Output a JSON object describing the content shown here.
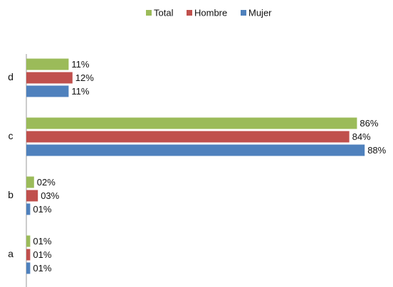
{
  "chart_data": {
    "type": "hbar",
    "categories": [
      "a",
      "b",
      "c",
      "d"
    ],
    "series": [
      {
        "name": "Total",
        "color": "#9bbb59",
        "values": [
          1,
          2,
          86,
          11
        ],
        "value_labels": [
          "01%",
          "02%",
          "86%",
          "11%"
        ]
      },
      {
        "name": "Hombre",
        "color": "#c0504d",
        "values": [
          1,
          3,
          84,
          12
        ],
        "value_labels": [
          "01%",
          "03%",
          "84%",
          "12%"
        ]
      },
      {
        "name": "Mujer",
        "color": "#4f81bd",
        "values": [
          1,
          1,
          88,
          11
        ],
        "value_labels": [
          "01%",
          "01%",
          "88%",
          "11%"
        ]
      }
    ],
    "xlim": [
      0,
      90
    ],
    "legend": "top"
  }
}
